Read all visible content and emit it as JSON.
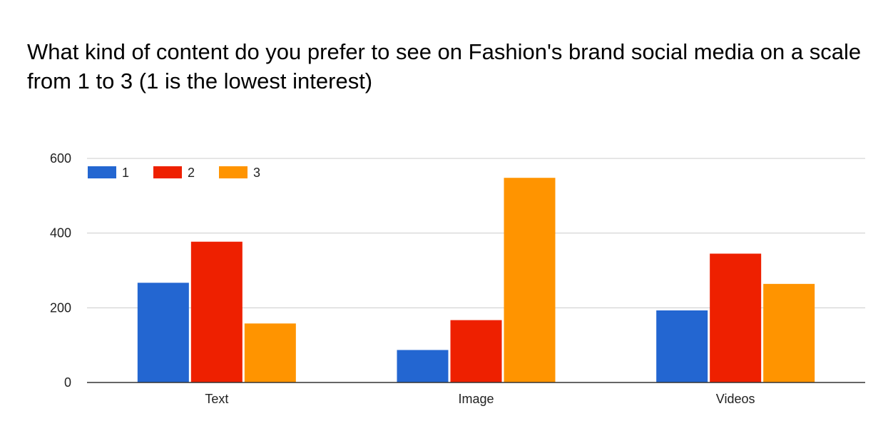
{
  "chart_data": {
    "type": "bar",
    "title": "What kind of content do you prefer to see on Fashion's brand social media on a scale from 1 to 3 (1 is the lowest interest)",
    "xlabel": "",
    "ylabel": "",
    "categories": [
      "Text",
      "Image",
      "Videos"
    ],
    "series": [
      {
        "name": "1",
        "color": "#2366d1",
        "values": [
          267,
          87,
          193
        ]
      },
      {
        "name": "2",
        "color": "#ee2000",
        "values": [
          377,
          167,
          345
        ]
      },
      {
        "name": "3",
        "color": "#ff9400",
        "values": [
          158,
          548,
          264
        ]
      }
    ],
    "ylim": [
      0,
      600
    ],
    "yticks": [
      0,
      200,
      400,
      600
    ],
    "grid": true,
    "legend_position": "top-left"
  }
}
